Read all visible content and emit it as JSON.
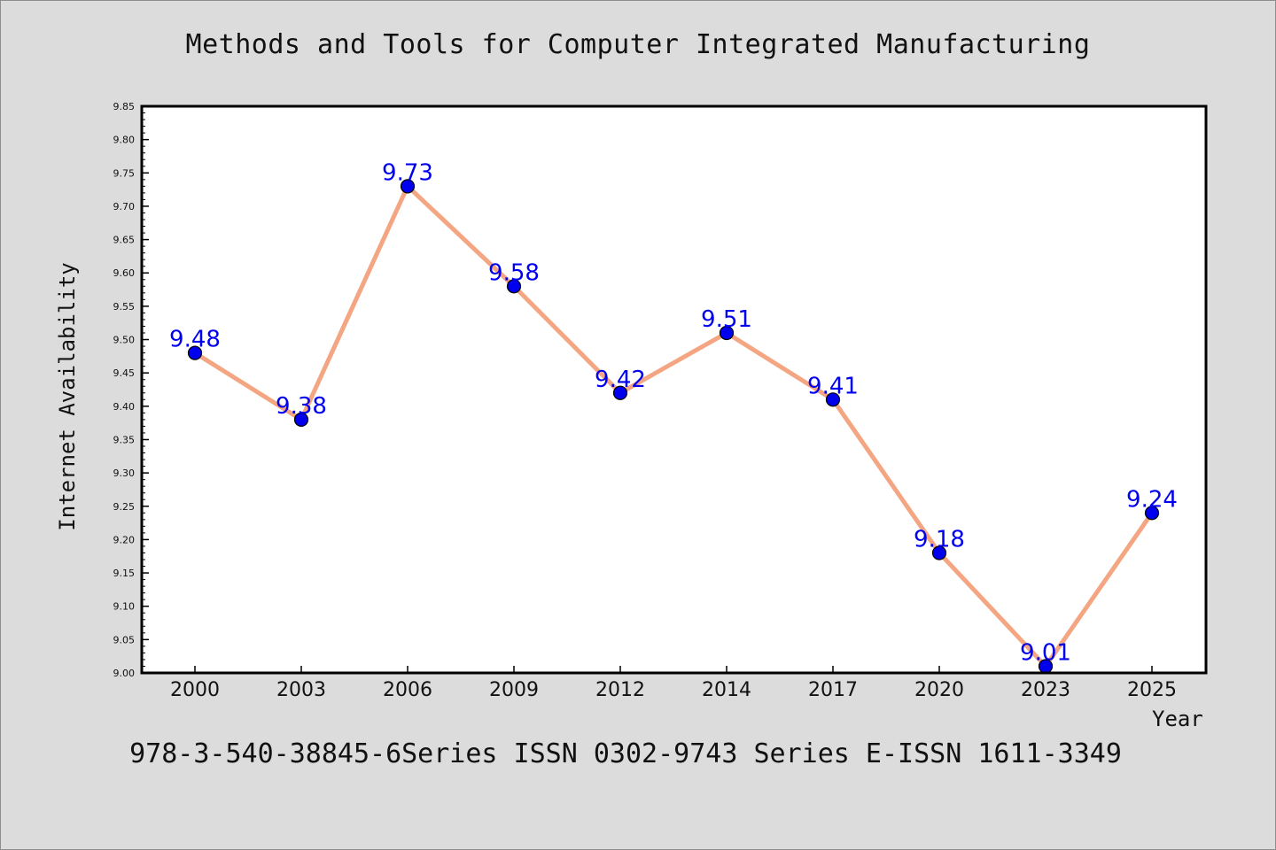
{
  "chart_data": {
    "type": "line",
    "title": "Methods and Tools for Computer Integrated Manufacturing",
    "xlabel": "Year",
    "ylabel": "Internet Availability",
    "categories": [
      "2000",
      "2003",
      "2006",
      "2009",
      "2012",
      "2014",
      "2017",
      "2020",
      "2023",
      "2025"
    ],
    "series": [
      {
        "values": [
          9.48,
          9.38,
          9.73,
          9.58,
          9.42,
          9.51,
          9.41,
          9.18,
          9.01,
          9.24
        ]
      }
    ],
    "data_labels": [
      "9.48",
      "9.38",
      "9.73",
      "9.58",
      "9.42",
      "9.51",
      "9.41",
      "9.18",
      "9.01",
      "9.24"
    ],
    "ylim": [
      9.0,
      9.85
    ],
    "yticks": [
      "9.00",
      "9.05",
      "9.10",
      "9.15",
      "9.20",
      "9.25",
      "9.30",
      "9.35",
      "9.40",
      "9.45",
      "9.50",
      "9.55",
      "9.60",
      "9.65",
      "9.70",
      "9.75",
      "9.80",
      "9.85"
    ],
    "grid": false,
    "colors": {
      "line": "#f4a582",
      "marker": "#0000ee",
      "label": "#0000ee",
      "background": "#dcdcdc",
      "plot_background": "#ffffff"
    }
  },
  "footer": {
    "text": "978-3-540-38845-6Series ISSN 0302-9743 Series E-ISSN 1611-3349"
  }
}
